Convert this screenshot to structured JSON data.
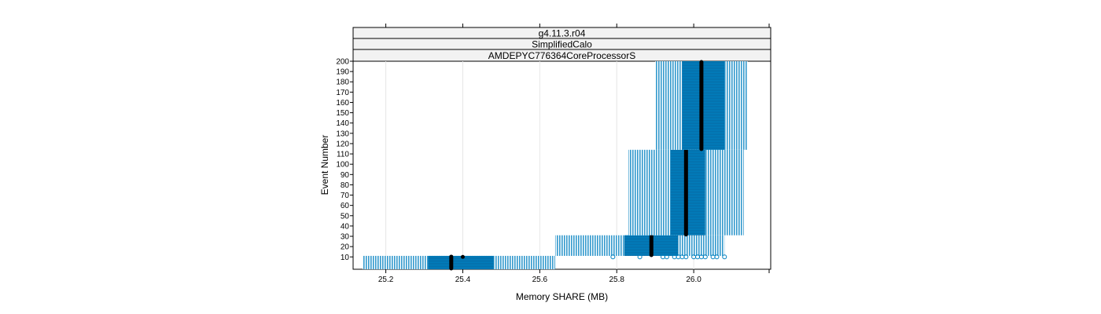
{
  "chart_data": {
    "type": "boxplot",
    "strips": [
      "g4.11.3.r04",
      "SimplifiedCalo",
      "AMDEPYC776364CoreProcessorS"
    ],
    "xlabel": "Memory SHARE (MB)",
    "ylabel": "Event Number",
    "xlim": [
      25.115,
      26.2
    ],
    "ylim": [
      -2,
      200
    ],
    "xticks": [
      25.2,
      25.4,
      25.6,
      25.8,
      26.0
    ],
    "xtick_labels": [
      "25.2",
      "25.4",
      "25.6",
      "25.8",
      "26.0"
    ],
    "yticks": [
      10,
      20,
      30,
      40,
      50,
      60,
      70,
      80,
      90,
      100,
      110,
      120,
      130,
      140,
      150,
      160,
      170,
      180,
      190,
      200
    ],
    "ytick_labels": [
      "10",
      "20",
      "30",
      "40",
      "50",
      "60",
      "70",
      "80",
      "90",
      "100",
      "110",
      "120",
      "130",
      "140",
      "150",
      "160",
      "170",
      "180",
      "190",
      "200"
    ],
    "grid": true,
    "colors": {
      "box": "#0080c0",
      "whisker": "#0080c0",
      "median": "#000000"
    },
    "boxes": [
      {
        "y0": -2,
        "y1": 11,
        "whisker_low": 25.14,
        "q1": 25.31,
        "median": 25.37,
        "q3": 25.48,
        "whisker_high": 25.64,
        "mean": 25.4
      },
      {
        "y0": 11,
        "y1": 31,
        "whisker_low": 25.64,
        "q1": 25.82,
        "median": 25.89,
        "q3": 25.96,
        "whisker_high": 26.08
      },
      {
        "y0": 31,
        "y1": 114,
        "whisker_low": 25.83,
        "q1": 25.94,
        "median": 25.98,
        "q3": 26.03,
        "whisker_high": 26.13
      },
      {
        "y0": 114,
        "y1": 200,
        "whisker_low": 25.9,
        "q1": 25.97,
        "median": 26.02,
        "q3": 26.08,
        "whisker_high": 26.14
      }
    ],
    "outliers": [
      {
        "x": 25.86,
        "y": 10
      },
      {
        "x": 25.92,
        "y": 10
      },
      {
        "x": 25.93,
        "y": 10
      },
      {
        "x": 25.95,
        "y": 10
      },
      {
        "x": 25.96,
        "y": 10
      },
      {
        "x": 25.97,
        "y": 10
      },
      {
        "x": 25.98,
        "y": 10
      },
      {
        "x": 26.0,
        "y": 10
      },
      {
        "x": 26.01,
        "y": 10
      },
      {
        "x": 26.02,
        "y": 10
      },
      {
        "x": 26.03,
        "y": 10
      },
      {
        "x": 26.05,
        "y": 10
      },
      {
        "x": 26.06,
        "y": 10
      },
      {
        "x": 26.08,
        "y": 10
      },
      {
        "x": 25.79,
        "y": 10
      }
    ]
  }
}
